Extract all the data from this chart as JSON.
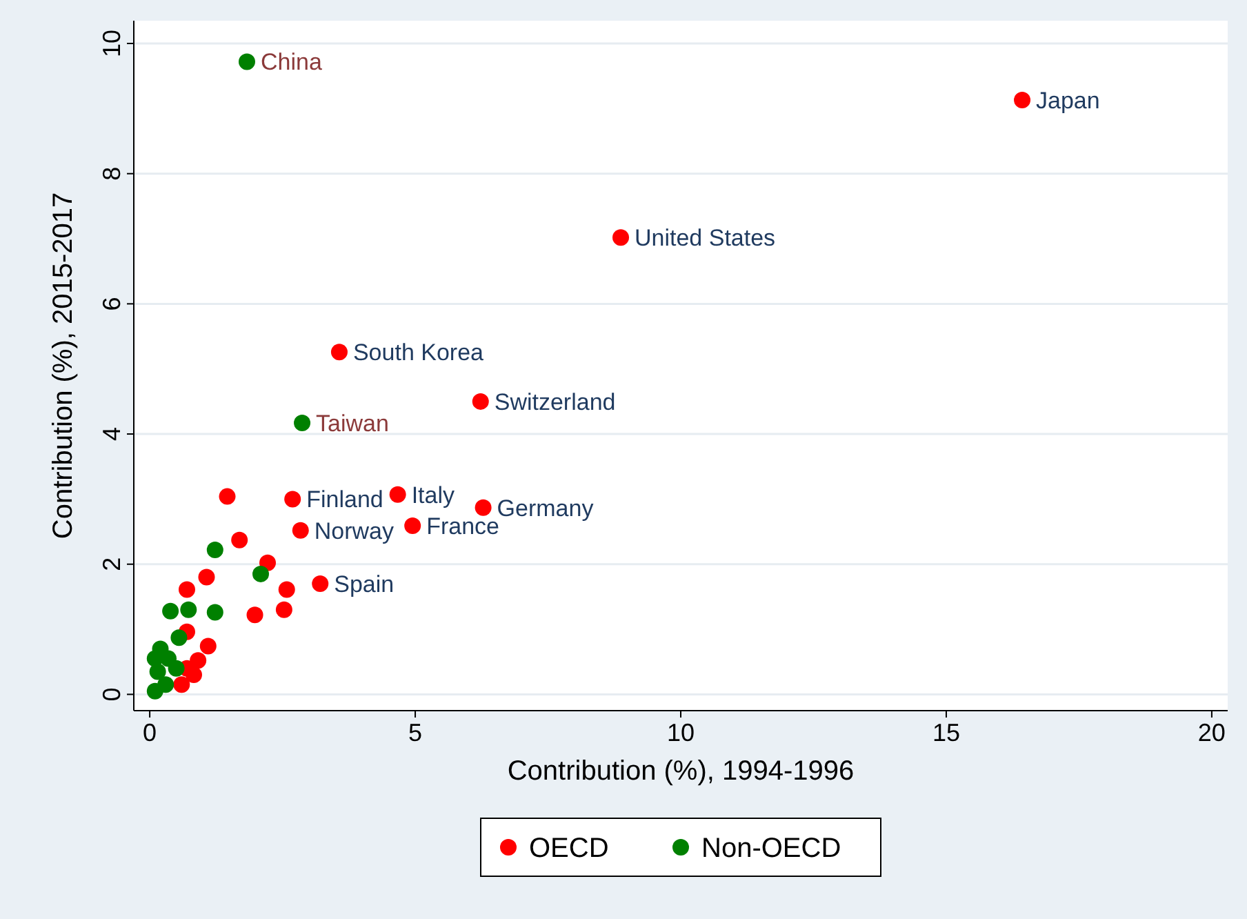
{
  "chart_data": {
    "type": "scatter",
    "xlabel": "Contribution (%), 1994-1996",
    "ylabel": "Contribution (%), 2015-2017",
    "xlim": [
      -0.3,
      20.3
    ],
    "ylim": [
      -0.25,
      10.35
    ],
    "xticks": [
      0,
      5,
      10,
      15,
      20
    ],
    "yticks": [
      0,
      2,
      4,
      6,
      8,
      10
    ],
    "grid": "y",
    "legend": "bottom",
    "marker": "circle",
    "series": [
      {
        "name": "OECD",
        "color": "#ff0000",
        "x": [
          16.43,
          8.87,
          3.57,
          6.23,
          2.69,
          4.67,
          6.28,
          2.84,
          4.95,
          3.21,
          1.46,
          1.69,
          2.22,
          1.07,
          2.58,
          1.98,
          2.53,
          0.7,
          0.7,
          1.1,
          0.91,
          0.83,
          0.6,
          0.7
        ],
        "values": [
          9.13,
          7.02,
          5.26,
          4.5,
          3.0,
          3.07,
          2.87,
          2.52,
          2.59,
          1.7,
          3.04,
          2.37,
          2.02,
          1.8,
          1.61,
          1.22,
          1.3,
          1.61,
          0.96,
          0.74,
          0.52,
          0.3,
          0.15,
          0.4
        ],
        "value_labels": [
          "Japan",
          "United States",
          "South Korea",
          "Switzerland",
          "Finland",
          "Italy",
          "Germany",
          "Norway",
          "France",
          "Spain",
          null,
          null,
          null,
          null,
          null,
          null,
          null,
          null,
          null,
          null,
          null,
          null,
          null,
          null
        ]
      },
      {
        "name": "Non-OECD",
        "color": "#008000",
        "x": [
          1.83,
          2.87,
          1.23,
          2.09,
          1.23,
          0.39,
          0.73,
          0.55,
          0.1,
          0.15,
          0.1,
          0.3,
          0.5,
          0.2,
          0.35
        ],
        "values": [
          9.72,
          4.17,
          2.22,
          1.85,
          1.26,
          1.28,
          1.3,
          0.87,
          0.55,
          0.35,
          0.05,
          0.15,
          0.4,
          0.7,
          0.55
        ],
        "value_labels": [
          "China",
          "Taiwan",
          null,
          null,
          null,
          null,
          null,
          null,
          null,
          null,
          null,
          null,
          null,
          null,
          null
        ]
      }
    ]
  }
}
